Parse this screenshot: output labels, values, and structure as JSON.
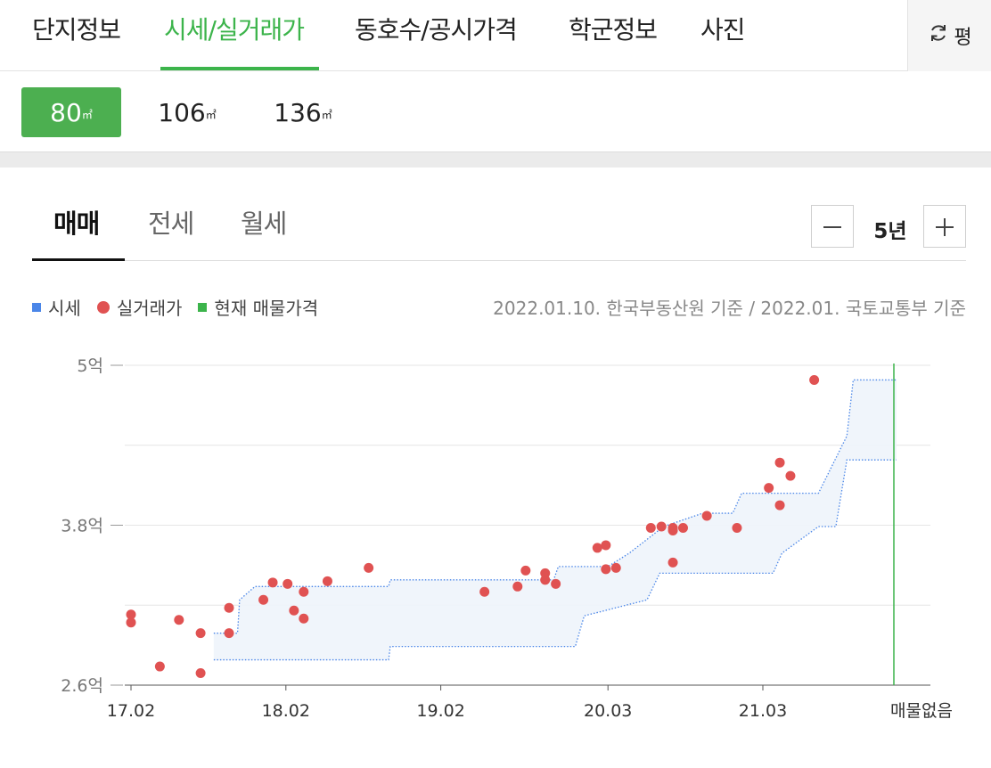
{
  "top_tabs": [
    "단지정보",
    "시세/실거래가",
    "동호수/공시가격",
    "학군정보",
    "사진"
  ],
  "pyeong_button": {
    "label": "평",
    "icon": "refresh-icon"
  },
  "areas": [
    {
      "value": "80",
      "unit": "㎡"
    },
    {
      "value": "106",
      "unit": "㎡"
    },
    {
      "value": "136",
      "unit": "㎡"
    }
  ],
  "sub_tabs": [
    "매매",
    "전세",
    "월세"
  ],
  "period": {
    "label": "5년",
    "minus_icon": "minus-icon",
    "plus_icon": "plus-icon"
  },
  "legend": {
    "items": [
      "시세",
      "실거래가",
      "현재 매물가격"
    ],
    "source": "2022.01.10. 한국부동산원 기준 / 2022.01. 국토교통부 기준"
  },
  "colors": {
    "accent": "#3cb44b",
    "market_price": "#4a86e8",
    "transaction": "#e05252",
    "current_listing": "#3cb44b"
  },
  "chart_data": {
    "type": "scatter",
    "title": "",
    "xlabel": "",
    "ylabel": "",
    "x_ticks": [
      "17.02",
      "18.02",
      "19.02",
      "20.03",
      "21.03"
    ],
    "end_label": "매물없음",
    "y_ticks": [
      "2.6억",
      "3.8억",
      "5억"
    ],
    "ylim": [
      2.6,
      5.0
    ],
    "grid": true,
    "series": [
      {
        "name": "실거래가",
        "points": [
          [
            "2017-02-01",
            3.13
          ],
          [
            "2017-02-01",
            3.07
          ],
          [
            "2017-04-10",
            2.74
          ],
          [
            "2017-05-25",
            3.09
          ],
          [
            "2017-07-15",
            2.99
          ],
          [
            "2017-07-15",
            2.69
          ],
          [
            "2017-09-20",
            3.18
          ],
          [
            "2017-09-20",
            2.99
          ],
          [
            "2017-12-10",
            3.24
          ],
          [
            "2018-01-01",
            3.37
          ],
          [
            "2018-02-05",
            3.36
          ],
          [
            "2018-02-20",
            3.16
          ],
          [
            "2018-03-15",
            3.3
          ],
          [
            "2018-03-15",
            3.1
          ],
          [
            "2018-05-10",
            3.38
          ],
          [
            "2018-08-15",
            3.48
          ],
          [
            "2019-05-15",
            3.3
          ],
          [
            "2019-08-01",
            3.34
          ],
          [
            "2019-08-20",
            3.46
          ],
          [
            "2019-10-05",
            3.44
          ],
          [
            "2019-10-05",
            3.39
          ],
          [
            "2019-10-30",
            3.36
          ],
          [
            "2020-02-05",
            3.63
          ],
          [
            "2020-02-25",
            3.65
          ],
          [
            "2020-02-25",
            3.47
          ],
          [
            "2020-03-20",
            3.48
          ],
          [
            "2020-06-10",
            3.78
          ],
          [
            "2020-07-05",
            3.79
          ],
          [
            "2020-08-01",
            3.78
          ],
          [
            "2020-08-01",
            3.76
          ],
          [
            "2020-08-01",
            3.52
          ],
          [
            "2020-08-25",
            3.78
          ],
          [
            "2020-10-20",
            3.87
          ],
          [
            "2020-12-30",
            3.78
          ],
          [
            "2021-03-15",
            4.08
          ],
          [
            "2021-04-10",
            4.27
          ],
          [
            "2021-04-10",
            3.95
          ],
          [
            "2021-05-05",
            4.17
          ],
          [
            "2021-06-30",
            4.89
          ]
        ]
      },
      {
        "name": "시세",
        "band_upper": [
          [
            "2017-08-15",
            2.99
          ],
          [
            "2017-10-10",
            2.99
          ],
          [
            "2017-10-15",
            3.24
          ],
          [
            "2017-11-20",
            3.34
          ],
          [
            "2018-10-01",
            3.34
          ],
          [
            "2018-10-05",
            3.39
          ],
          [
            "2019-10-25",
            3.39
          ],
          [
            "2019-11-05",
            3.49
          ],
          [
            "2020-03-01",
            3.49
          ],
          [
            "2020-04-20",
            3.59
          ],
          [
            "2020-07-10",
            3.79
          ],
          [
            "2020-10-10",
            3.89
          ],
          [
            "2020-12-20",
            3.89
          ],
          [
            "2021-01-10",
            4.04
          ],
          [
            "2021-07-10",
            4.04
          ],
          [
            "2021-09-15",
            4.47
          ],
          [
            "2021-09-30",
            4.89
          ],
          [
            "2022-01-10",
            4.89
          ]
        ],
        "band_lower": [
          [
            "2017-08-15",
            2.79
          ],
          [
            "2018-10-01",
            2.79
          ],
          [
            "2018-10-05",
            2.89
          ],
          [
            "2019-12-15",
            2.89
          ],
          [
            "2020-01-05",
            3.12
          ],
          [
            "2020-06-01",
            3.24
          ],
          [
            "2020-07-01",
            3.44
          ],
          [
            "2021-03-25",
            3.44
          ],
          [
            "2021-04-15",
            3.59
          ],
          [
            "2021-07-10",
            3.79
          ],
          [
            "2021-08-20",
            3.79
          ],
          [
            "2021-09-15",
            4.29
          ],
          [
            "2022-01-10",
            4.29
          ]
        ]
      }
    ],
    "current_listing": "매물없음"
  }
}
